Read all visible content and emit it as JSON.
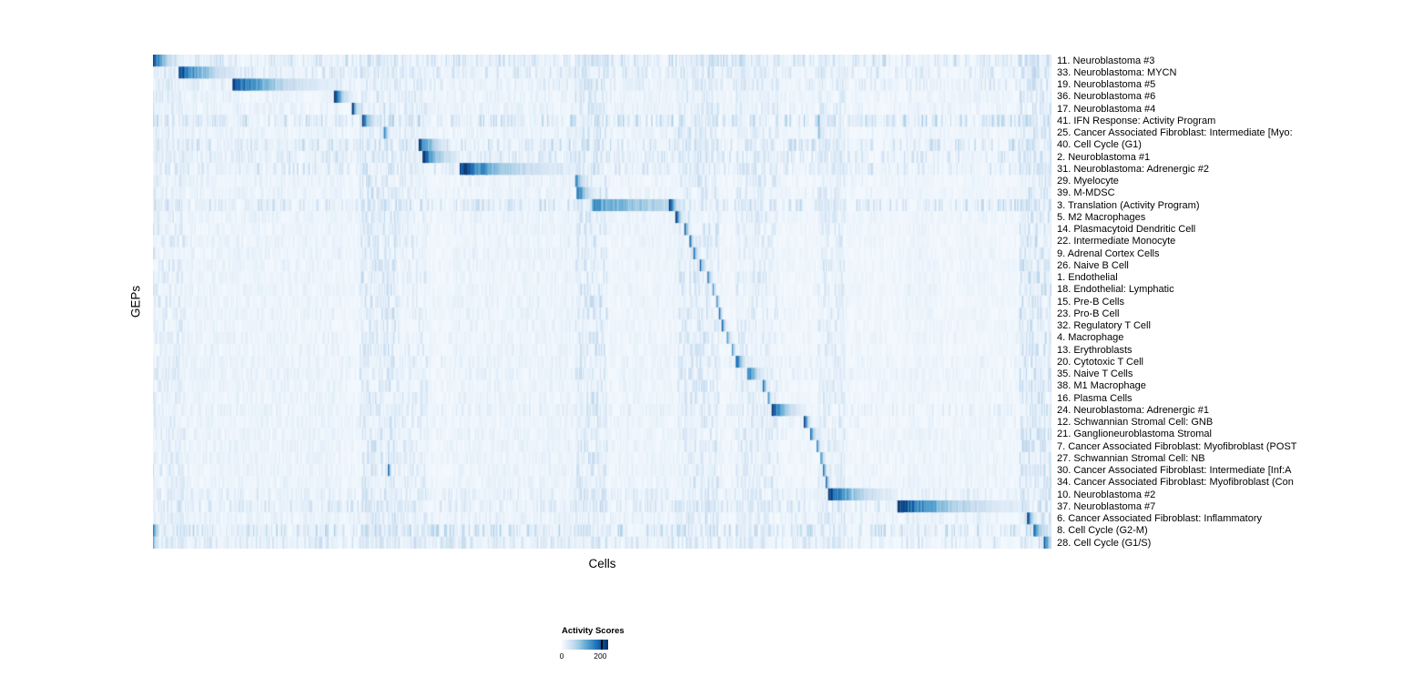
{
  "chart_data": {
    "type": "heatmap",
    "xlabel": "Cells",
    "ylabel": "GEPs",
    "colormap": "Blues",
    "n_cells": 700,
    "legend": {
      "title": "Activity Scores",
      "min_label": "0",
      "max_label": "200",
      "min": 0,
      "max": 200
    },
    "colors": {
      "background": "#ffffff",
      "colormap_stops": [
        "#f7fbff",
        "#deebf7",
        "#c6dbef",
        "#9ecae1",
        "#6baed6",
        "#4292c6",
        "#2171b5",
        "#08519c",
        "#08306b"
      ]
    },
    "noise_columns": [
      [
        0.0,
        0.035,
        0.22
      ],
      [
        0.03,
        0.095,
        0.12
      ],
      [
        0.09,
        0.21,
        0.12
      ],
      [
        0.23,
        0.27,
        0.28
      ],
      [
        0.27,
        0.305,
        0.2
      ],
      [
        0.335,
        0.475,
        0.12
      ],
      [
        0.47,
        0.505,
        0.28
      ],
      [
        0.52,
        0.585,
        0.1
      ],
      [
        0.585,
        0.63,
        0.26
      ],
      [
        0.648,
        0.695,
        0.22
      ],
      [
        0.74,
        0.77,
        0.22
      ],
      [
        0.84,
        0.87,
        0.1
      ],
      [
        0.9,
        0.93,
        0.08
      ],
      [
        0.965,
        1.0,
        0.3
      ]
    ],
    "rows": [
      {
        "label": "11. Neuroblastoma #3",
        "blocks": [
          [
            0.0,
            0.032,
            1,
            2.5
          ]
        ],
        "scatter": 0.3
      },
      {
        "label": "33. Neuroblastoma: MYCN",
        "blocks": [
          [
            0.028,
            0.092,
            1,
            2.0
          ]
        ],
        "scatter": 0.25
      },
      {
        "label": "19. Neuroblastoma #5",
        "blocks": [
          [
            0.088,
            0.205,
            1,
            2.5
          ]
        ],
        "scatter": 0.2
      },
      {
        "label": "36. Neuroblastoma #6",
        "blocks": [
          [
            0.202,
            0.223,
            1,
            2.5
          ]
        ],
        "scatter": 0.12
      },
      {
        "label": "17. Neuroblastoma #4",
        "blocks": [
          [
            0.222,
            0.235,
            1,
            3
          ]
        ],
        "scatter": 0.12
      },
      {
        "label": "41. IFN Response: Activity Program",
        "blocks": [
          [
            0.233,
            0.256,
            1,
            3
          ],
          [
            0.74,
            0.746,
            0.7,
            3
          ]
        ],
        "scatter": 0.35
      },
      {
        "label": "25. Cancer Associated Fibroblast: Intermediate [Myo:",
        "blocks": [
          [
            0.257,
            0.266,
            1,
            3
          ],
          [
            0.74,
            0.748,
            0.6,
            3
          ]
        ],
        "scatter": 0.12
      },
      {
        "label": "40. Cell Cycle (G1)",
        "blocks": [
          [
            0.296,
            0.332,
            1,
            2.5
          ]
        ],
        "scatter": 0.3
      },
      {
        "label": "2. Neuroblastoma #1",
        "blocks": [
          [
            0.3,
            0.341,
            1,
            2.2
          ]
        ],
        "scatter": 0.25
      },
      {
        "label": "31. Neuroblastoma: Adrenergic #2",
        "blocks": [
          [
            0.341,
            0.47,
            1,
            2.5
          ]
        ],
        "scatter": 0.25
      },
      {
        "label": "29. Myelocyte",
        "blocks": [
          [
            0.47,
            0.486,
            0.8,
            2.5
          ]
        ],
        "scatter": 0.1
      },
      {
        "label": "39. M-MDSC",
        "blocks": [
          [
            0.471,
            0.494,
            1,
            2.5
          ]
        ],
        "scatter": 0.1
      },
      {
        "label": "3. Translation (Activity Program)",
        "blocks": [
          [
            0.488,
            0.578,
            0.6,
            0.8
          ],
          [
            0.575,
            0.592,
            1,
            3
          ]
        ],
        "scatter": 0.3
      },
      {
        "label": "5. M2 Macrophages",
        "blocks": [
          [
            0.582,
            0.596,
            1,
            3.5
          ]
        ],
        "scatter": 0.1
      },
      {
        "label": "14. Plasmacytoid Dendritic Cell",
        "blocks": [
          [
            0.592,
            0.6,
            1,
            3
          ]
        ],
        "scatter": 0.08
      },
      {
        "label": "22. Intermediate Monocyte",
        "blocks": [
          [
            0.597,
            0.604,
            1,
            3
          ]
        ],
        "scatter": 0.08
      },
      {
        "label": "9. Adrenal Cortex Cells",
        "blocks": [
          [
            0.602,
            0.61,
            1,
            3
          ]
        ],
        "scatter": 0.08
      },
      {
        "label": "26. Naive B Cell",
        "blocks": [
          [
            0.608,
            0.618,
            1,
            3
          ]
        ],
        "scatter": 0.08
      },
      {
        "label": "1. Endothelial",
        "blocks": [
          [
            0.617,
            0.625,
            1,
            3
          ]
        ],
        "scatter": 0.08
      },
      {
        "label": "18. Endothelial: Lymphatic",
        "blocks": [
          [
            0.623,
            0.628,
            1,
            3
          ]
        ],
        "scatter": 0.08
      },
      {
        "label": "15. Pre-B Cells",
        "blocks": [
          [
            0.627,
            0.632,
            1,
            3
          ]
        ],
        "scatter": 0.08
      },
      {
        "label": "23. Pro-B Cell",
        "blocks": [
          [
            0.63,
            0.635,
            1,
            3
          ]
        ],
        "scatter": 0.08
      },
      {
        "label": "32. Regulatory T Cell",
        "blocks": [
          [
            0.633,
            0.64,
            1,
            3
          ]
        ],
        "scatter": 0.08
      },
      {
        "label": "4. Macrophage",
        "blocks": [
          [
            0.638,
            0.646,
            1,
            3
          ]
        ],
        "scatter": 0.1
      },
      {
        "label": "13. Erythroblasts",
        "blocks": [
          [
            0.644,
            0.651,
            1,
            3
          ]
        ],
        "scatter": 0.08
      },
      {
        "label": "20. Cytotoxic T Cell",
        "blocks": [
          [
            0.649,
            0.665,
            1,
            3
          ]
        ],
        "scatter": 0.12
      },
      {
        "label": "35. Naive T Cells",
        "blocks": [
          [
            0.661,
            0.682,
            1,
            2.5
          ]
        ],
        "scatter": 0.12
      },
      {
        "label": "38. M1 Macrophage",
        "blocks": [
          [
            0.679,
            0.686,
            1,
            3
          ]
        ],
        "scatter": 0.1
      },
      {
        "label": "16. Plasma Cells",
        "blocks": [
          [
            0.684,
            0.69,
            1,
            3
          ]
        ],
        "scatter": 0.08
      },
      {
        "label": "24. Neuroblastoma: Adrenergic #1",
        "blocks": [
          [
            0.689,
            0.727,
            1,
            2.5
          ]
        ],
        "scatter": 0.15
      },
      {
        "label": "12. Schwannian Stromal Cell: GNB",
        "blocks": [
          [
            0.725,
            0.735,
            1,
            3
          ]
        ],
        "scatter": 0.1
      },
      {
        "label": "21. Ganglioneuroblastoma Stromal",
        "blocks": [
          [
            0.732,
            0.741,
            1,
            3
          ]
        ],
        "scatter": 0.1
      },
      {
        "label": "7. Cancer Associated Fibroblast: Myofibroblast (POST",
        "blocks": [
          [
            0.738,
            0.746,
            1,
            3
          ]
        ],
        "scatter": 0.1
      },
      {
        "label": "27. Schwannian Stromal Cell: NB",
        "blocks": [
          [
            0.743,
            0.749,
            1,
            3
          ]
        ],
        "scatter": 0.1
      },
      {
        "label": "30. Cancer Associated Fibroblast: Intermediate [Inf:A",
        "blocks": [
          [
            0.746,
            0.752,
            1,
            3
          ],
          [
            0.262,
            0.266,
            0.8,
            2
          ]
        ],
        "scatter": 0.1
      },
      {
        "label": "34. Cancer Associated Fibroblast: Myofibroblast (Con",
        "blocks": [
          [
            0.749,
            0.755,
            1,
            3
          ]
        ],
        "scatter": 0.1
      },
      {
        "label": "10. Neuroblastoma #2",
        "blocks": [
          [
            0.752,
            0.828,
            1,
            2.5
          ]
        ],
        "scatter": 0.2
      },
      {
        "label": "37. Neuroblastoma #7",
        "blocks": [
          [
            0.828,
            0.975,
            1,
            2.5
          ]
        ],
        "scatter": 0.25
      },
      {
        "label": "6. Cancer Associated Fibroblast: Inflammatory",
        "blocks": [
          [
            0.973,
            0.984,
            1,
            2.5
          ]
        ],
        "scatter": 0.15
      },
      {
        "label": "8. Cell Cycle (G2-M)",
        "blocks": [
          [
            0.98,
            0.994,
            1,
            2
          ],
          [
            0.0,
            0.007,
            0.9,
            2
          ]
        ],
        "scatter": 0.35
      },
      {
        "label": "28. Cell Cycle (G1/S)",
        "blocks": [
          [
            0.991,
            1.0,
            1,
            1.5
          ],
          [
            0.0,
            0.005,
            0.8,
            2
          ]
        ],
        "scatter": 0.25
      }
    ]
  }
}
